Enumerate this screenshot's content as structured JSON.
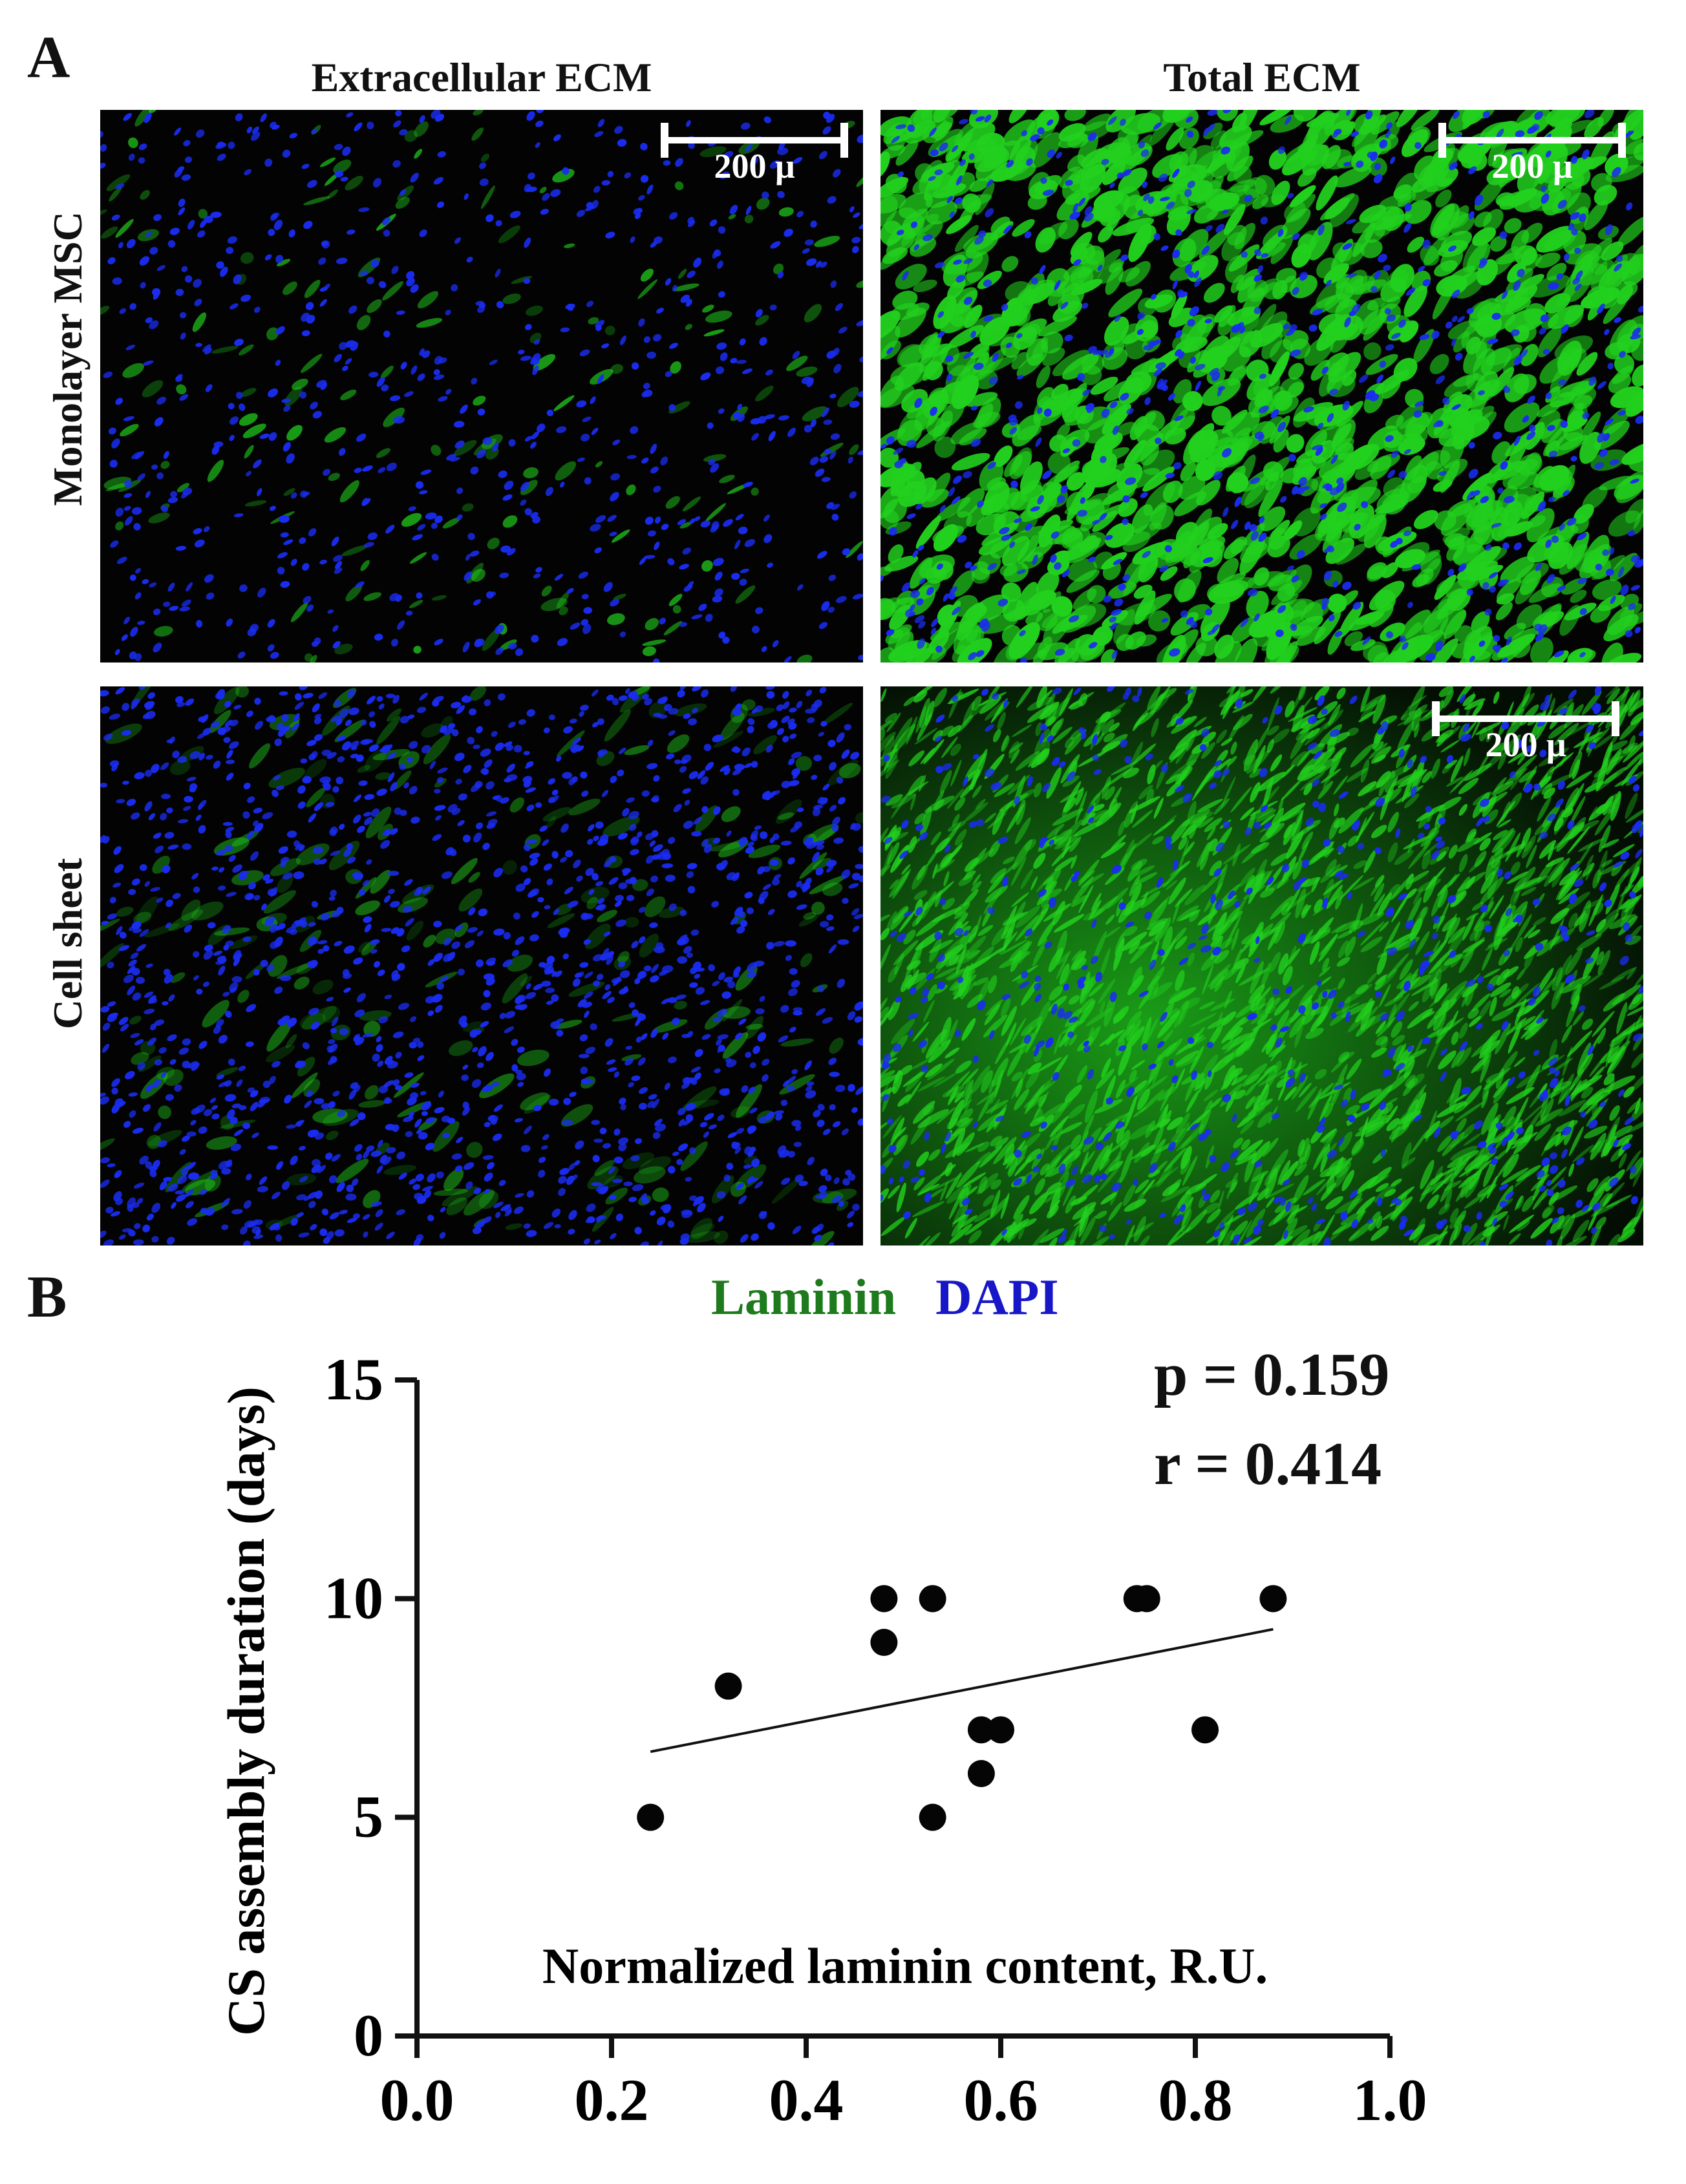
{
  "panel_a": {
    "letter": "A",
    "columns": [
      "Extracellular  ECM",
      "Total ECM"
    ],
    "rows": [
      "Monolayer MSC",
      "Cell sheet"
    ],
    "scale_bar_label": "200 μ",
    "colors": {
      "laminin": "#22d01e",
      "dapi": "#1a2cf0",
      "background": "#020302"
    }
  },
  "panel_b": {
    "letter": "B",
    "legend": {
      "laminin": "Laminin",
      "dapi": "DAPI",
      "laminin_color": "#1d7a1d",
      "dapi_color": "#1717c8"
    },
    "stats": {
      "p": "p = 0.159",
      "r": "r = 0.414"
    }
  },
  "chart_data": {
    "type": "scatter",
    "title": "",
    "xlabel": "Normalized laminin content, R.U.",
    "ylabel": "CS assembly duration (days)",
    "xlim": [
      0.0,
      1.0
    ],
    "ylim": [
      0,
      15
    ],
    "x_ticks": [
      "0.0",
      "0.2",
      "0.4",
      "0.6",
      "0.8",
      "1.0"
    ],
    "y_ticks": [
      "0",
      "5",
      "10",
      "15"
    ],
    "x_tick_values": [
      0.0,
      0.2,
      0.4,
      0.6,
      0.8,
      1.0
    ],
    "y_tick_values": [
      0,
      5,
      10,
      15
    ],
    "points": [
      {
        "x": 0.24,
        "y": 5
      },
      {
        "x": 0.32,
        "y": 8
      },
      {
        "x": 0.48,
        "y": 10
      },
      {
        "x": 0.48,
        "y": 9
      },
      {
        "x": 0.53,
        "y": 10
      },
      {
        "x": 0.53,
        "y": 5
      },
      {
        "x": 0.58,
        "y": 7
      },
      {
        "x": 0.58,
        "y": 6
      },
      {
        "x": 0.6,
        "y": 7
      },
      {
        "x": 0.74,
        "y": 10
      },
      {
        "x": 0.75,
        "y": 10
      },
      {
        "x": 0.81,
        "y": 7
      },
      {
        "x": 0.88,
        "y": 10
      }
    ],
    "fit_line": {
      "x": [
        0.24,
        0.88
      ],
      "y": [
        6.5,
        9.3
      ]
    },
    "grid": false,
    "legend": "none"
  }
}
